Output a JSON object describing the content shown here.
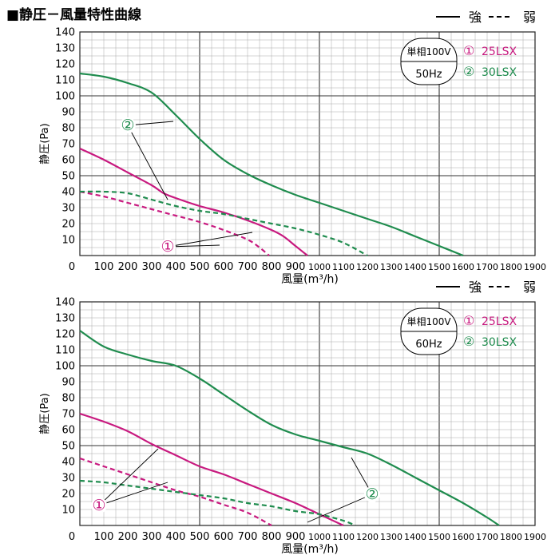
{
  "title": "■静圧－風量特性曲線",
  "colors": {
    "series1": "#c8197f",
    "series2": "#1f8c4e",
    "grid": "#a8a8a8",
    "axis": "#222222"
  },
  "chart_data": [
    {
      "type": "line",
      "ylabel": "静圧(Pa)",
      "xlabel": "風量(m³/h)",
      "xlim": [
        0,
        1900
      ],
      "ylim": [
        0,
        140
      ],
      "x_ticks": [
        "0",
        "100",
        "200",
        "300",
        "400",
        "500",
        "600",
        "700",
        "800",
        "900",
        "1000",
        "1100",
        "1200",
        "1300",
        "1400",
        "1500",
        "1600",
        "1700",
        "1800",
        "1900"
      ],
      "y_ticks": [
        "10",
        "20",
        "30",
        "40",
        "50",
        "60",
        "70",
        "80",
        "90",
        "100",
        "110",
        "120",
        "130",
        "140"
      ],
      "legend_lines": {
        "strong": "強",
        "weak": "弱"
      },
      "info_box": {
        "top": "単相100V",
        "bottom": "50Hz"
      },
      "legend_models": [
        {
          "mark": "①",
          "model": "25LSX"
        },
        {
          "mark": "②",
          "model": "30LSX"
        }
      ],
      "series": [
        {
          "model": "25LSX",
          "mode": "強",
          "points": [
            [
              0,
              67
            ],
            [
              100,
              60
            ],
            [
              200,
              52
            ],
            [
              300,
              44
            ],
            [
              350,
              39
            ],
            [
              400,
              36
            ],
            [
              500,
              31
            ],
            [
              600,
              27
            ],
            [
              700,
              22
            ],
            [
              800,
              16
            ],
            [
              850,
              12
            ],
            [
              900,
              6
            ],
            [
              950,
              0
            ]
          ]
        },
        {
          "model": "25LSX",
          "mode": "弱",
          "points": [
            [
              0,
              40
            ],
            [
              100,
              37
            ],
            [
              200,
              33
            ],
            [
              300,
              29
            ],
            [
              400,
              25
            ],
            [
              500,
              21
            ],
            [
              600,
              16
            ],
            [
              700,
              10
            ],
            [
              750,
              5
            ],
            [
              790,
              0
            ]
          ]
        },
        {
          "model": "30LSX",
          "mode": "強",
          "points": [
            [
              0,
              114
            ],
            [
              100,
              112
            ],
            [
              200,
              108
            ],
            [
              300,
              102
            ],
            [
              400,
              88
            ],
            [
              500,
              73
            ],
            [
              600,
              60
            ],
            [
              700,
              51
            ],
            [
              800,
              44
            ],
            [
              900,
              38
            ],
            [
              1000,
              33
            ],
            [
              1100,
              28
            ],
            [
              1200,
              23
            ],
            [
              1300,
              18
            ],
            [
              1400,
              12
            ],
            [
              1500,
              6
            ],
            [
              1600,
              0
            ]
          ]
        },
        {
          "model": "30LSX",
          "mode": "弱",
          "points": [
            [
              0,
              40
            ],
            [
              100,
              40
            ],
            [
              200,
              39
            ],
            [
              300,
              35
            ],
            [
              400,
              31
            ],
            [
              500,
              28
            ],
            [
              600,
              26
            ],
            [
              700,
              23
            ],
            [
              800,
              20
            ],
            [
              900,
              17
            ],
            [
              1000,
              13
            ],
            [
              1100,
              8
            ],
            [
              1200,
              0
            ]
          ]
        }
      ],
      "callouts": [
        {
          "mark": "②",
          "model": "30LSX"
        },
        {
          "mark": "①",
          "model": "25LSX"
        }
      ]
    },
    {
      "type": "line",
      "ylabel": "静圧(Pa)",
      "xlabel": "風量(m³/h)",
      "xlim": [
        0,
        1900
      ],
      "ylim": [
        0,
        140
      ],
      "x_ticks": [
        "0",
        "100",
        "200",
        "300",
        "400",
        "500",
        "600",
        "700",
        "800",
        "900",
        "1000",
        "1100",
        "1200",
        "1300",
        "1400",
        "1500",
        "1600",
        "1700",
        "1800",
        "1900"
      ],
      "y_ticks": [
        "10",
        "20",
        "30",
        "40",
        "50",
        "60",
        "70",
        "80",
        "90",
        "100",
        "110",
        "120",
        "130",
        "140"
      ],
      "legend_lines": {
        "strong": "強",
        "weak": "弱"
      },
      "info_box": {
        "top": "単相100V",
        "bottom": "60Hz"
      },
      "legend_models": [
        {
          "mark": "①",
          "model": "25LSX"
        },
        {
          "mark": "②",
          "model": "30LSX"
        }
      ],
      "series": [
        {
          "model": "25LSX",
          "mode": "強",
          "points": [
            [
              0,
              70
            ],
            [
              100,
              65
            ],
            [
              200,
              59
            ],
            [
              300,
              51
            ],
            [
              400,
              44
            ],
            [
              500,
              37
            ],
            [
              600,
              32
            ],
            [
              700,
              26
            ],
            [
              800,
              20
            ],
            [
              900,
              14
            ],
            [
              1000,
              7
            ],
            [
              1100,
              0
            ]
          ]
        },
        {
          "model": "25LSX",
          "mode": "弱",
          "points": [
            [
              0,
              42
            ],
            [
              100,
              37
            ],
            [
              200,
              32
            ],
            [
              300,
              27
            ],
            [
              400,
              22
            ],
            [
              500,
              18
            ],
            [
              600,
              13
            ],
            [
              700,
              8
            ],
            [
              800,
              0
            ]
          ]
        },
        {
          "model": "30LSX",
          "mode": "強",
          "points": [
            [
              0,
              122
            ],
            [
              100,
              112
            ],
            [
              200,
              107
            ],
            [
              300,
              103
            ],
            [
              400,
              100
            ],
            [
              500,
              92
            ],
            [
              600,
              82
            ],
            [
              700,
              72
            ],
            [
              800,
              63
            ],
            [
              900,
              57
            ],
            [
              1000,
              53
            ],
            [
              1100,
              49
            ],
            [
              1200,
              45
            ],
            [
              1300,
              38
            ],
            [
              1400,
              30
            ],
            [
              1500,
              22
            ],
            [
              1600,
              14
            ],
            [
              1700,
              5
            ],
            [
              1750,
              0
            ]
          ]
        },
        {
          "model": "30LSX",
          "mode": "弱",
          "points": [
            [
              0,
              28
            ],
            [
              100,
              27
            ],
            [
              200,
              25
            ],
            [
              300,
              23
            ],
            [
              400,
              21
            ],
            [
              500,
              19
            ],
            [
              600,
              17
            ],
            [
              700,
              14
            ],
            [
              800,
              12
            ],
            [
              900,
              9
            ],
            [
              1000,
              7
            ],
            [
              1100,
              3
            ],
            [
              1150,
              0
            ]
          ]
        }
      ],
      "callouts": [
        {
          "mark": "①",
          "model": "25LSX"
        },
        {
          "mark": "②",
          "model": "30LSX"
        }
      ]
    }
  ]
}
